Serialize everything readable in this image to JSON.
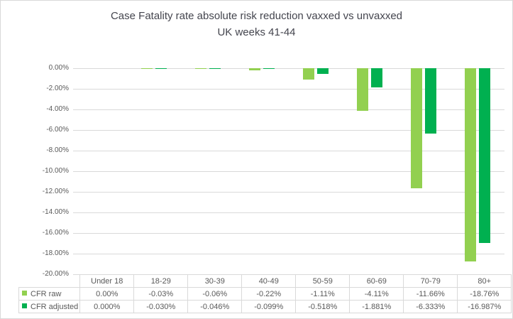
{
  "title": {
    "line1": "Case Fatality rate absolute risk reduction vaxxed vs unvaxxed",
    "line2": "UK weeks 41-44"
  },
  "colors": {
    "cfr_raw": "#92d050",
    "cfr_adjusted": "#00b050",
    "gridline": "#d9d9d9",
    "axis_text": "#595959",
    "title_text": "#44454e",
    "table_border": "#d9d9d9"
  },
  "y_axis": {
    "tick_labels": [
      "0.00%",
      "-2.00%",
      "-4.00%",
      "-6.00%",
      "-8.00%",
      "-10.00%",
      "-12.00%",
      "-14.00%",
      "-16.00%",
      "-18.00%",
      "-20.00%"
    ]
  },
  "chart_data": {
    "type": "bar",
    "title": "Case Fatality rate absolute risk reduction vaxxed vs unvaxxed UK weeks 41-44",
    "categories": [
      "Under 18",
      "18-29",
      "30-39",
      "40-49",
      "50-59",
      "60-69",
      "70-79",
      "80+"
    ],
    "series": [
      {
        "name": "CFR raw",
        "color": "#92d050",
        "values": [
          0.0,
          -0.03,
          -0.06,
          -0.22,
          -1.11,
          -4.11,
          -11.66,
          -18.76
        ],
        "value_labels": [
          "0.00%",
          "-0.03%",
          "-0.06%",
          "-0.22%",
          "-1.11%",
          "-4.11%",
          "-11.66%",
          "-18.76%"
        ]
      },
      {
        "name": "CFR adjusted",
        "color": "#00b050",
        "values": [
          0.0,
          -0.03,
          -0.046,
          -0.099,
          -0.518,
          -1.881,
          -6.333,
          -16.987
        ],
        "value_labels": [
          "0.000%",
          "-0.030%",
          "-0.046%",
          "-0.099%",
          "-0.518%",
          "-1.881%",
          "-6.333%",
          "-16.987%"
        ]
      }
    ],
    "xlabel": "",
    "ylabel": "",
    "ylim": [
      -20,
      0
    ],
    "y_tick_step": 2,
    "grid": true,
    "legend_position": "data-table-rows"
  }
}
